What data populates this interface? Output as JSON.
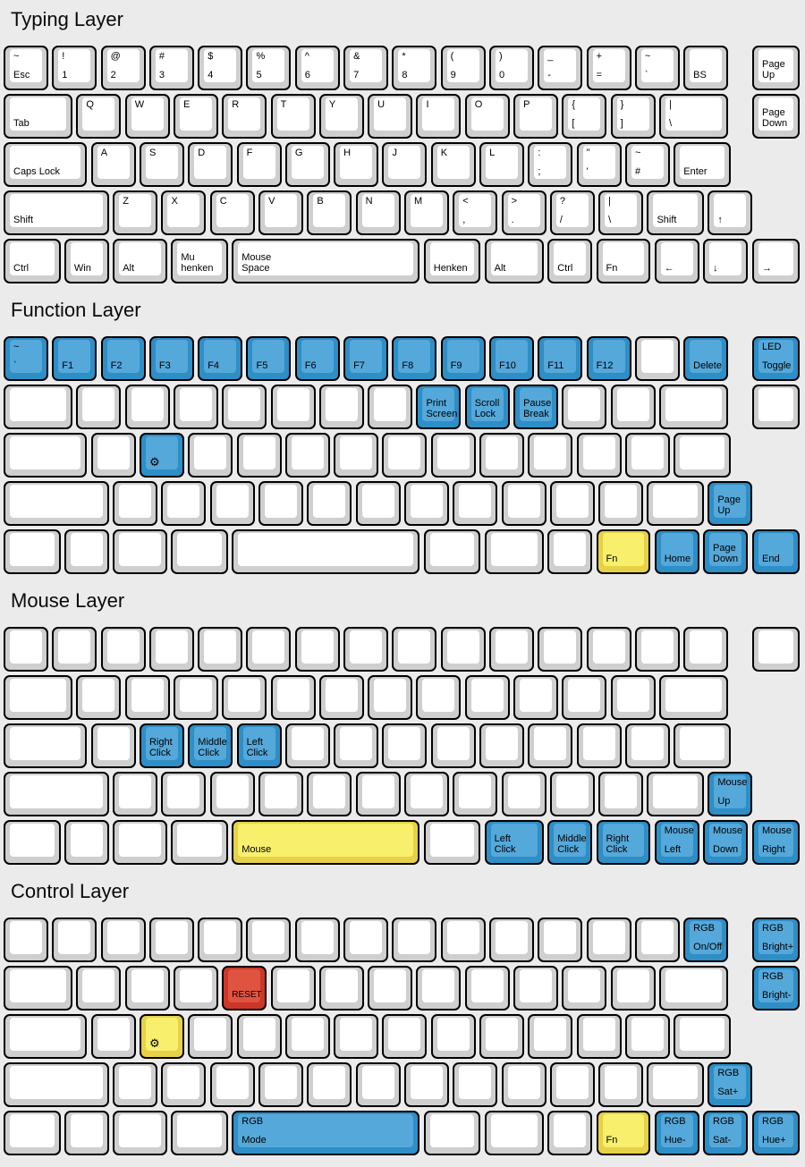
{
  "colors": {
    "background": "#ebebeb",
    "key_border": "#000000",
    "key_white_top": "#cfcfcf",
    "key_white_face": "#ffffff",
    "key_blue_top": "#2e8ec6",
    "key_blue_face": "#55a8da",
    "key_yellow_top": "#e6d148",
    "key_yellow_face": "#f8f06d",
    "key_red_top": "#cc3626",
    "key_red_face": "#e15341"
  },
  "icons": {
    "gear": "⚙",
    "arrow_up": "↑",
    "arrow_down": "↓",
    "arrow_left": "←",
    "arrow_right": "→"
  },
  "layers": [
    {
      "title": "Typing Layer",
      "rows": [
        [
          {
            "t": "~",
            "b": "Esc"
          },
          {
            "t": "!",
            "b": "1"
          },
          {
            "t": "@",
            "b": "2"
          },
          {
            "t": "#",
            "b": "3"
          },
          {
            "t": "$",
            "b": "4"
          },
          {
            "t": "%",
            "b": "5"
          },
          {
            "t": "^",
            "b": "6"
          },
          {
            "t": "&",
            "b": "7"
          },
          {
            "t": "*",
            "b": "8"
          },
          {
            "t": "(",
            "b": "9"
          },
          {
            "t": ")",
            "b": "0"
          },
          {
            "t": "_",
            "b": "-",
            "n": "minus"
          },
          {
            "t": "+",
            "b": "=",
            "n": "equals"
          },
          {
            "t": "~",
            "b": "`",
            "n": "backtick"
          },
          {
            "b": "BS"
          },
          {
            "b": "Page\nUp",
            "cl": 1
          }
        ],
        [
          {
            "b": "Tab",
            "w": 1.5
          },
          {
            "t": "Q"
          },
          {
            "t": "W"
          },
          {
            "t": "E"
          },
          {
            "t": "R"
          },
          {
            "t": "T"
          },
          {
            "t": "Y"
          },
          {
            "t": "U"
          },
          {
            "t": "I"
          },
          {
            "t": "O"
          },
          {
            "t": "P"
          },
          {
            "t": "{",
            "b": "[",
            "n": "lbracket"
          },
          {
            "t": "}",
            "b": "]",
            "n": "rbracket"
          },
          {
            "t": "|",
            "b": "\\",
            "w": 1.5,
            "n": "backslash"
          },
          {
            "b": "Page\nDown",
            "cl": 1
          }
        ],
        [
          {
            "b": "Caps Lock",
            "w": 1.8
          },
          {
            "t": "A"
          },
          {
            "t": "S"
          },
          {
            "t": "D"
          },
          {
            "t": "F"
          },
          {
            "t": "G"
          },
          {
            "t": "H"
          },
          {
            "t": "J"
          },
          {
            "t": "K"
          },
          {
            "t": "L"
          },
          {
            "t": ":",
            "b": ";",
            "n": "semicolon"
          },
          {
            "t": "\"",
            "b": "'",
            "n": "quote"
          },
          {
            "t": "~",
            "b": "#",
            "n": "hash"
          },
          {
            "b": "Enter",
            "w": 1.25
          }
        ],
        [
          {
            "b": "Shift",
            "w": 2.25
          },
          {
            "t": "Z"
          },
          {
            "t": "X"
          },
          {
            "t": "C"
          },
          {
            "t": "V"
          },
          {
            "t": "B"
          },
          {
            "t": "N"
          },
          {
            "t": "M"
          },
          {
            "t": "<",
            "b": ",",
            "n": "comma"
          },
          {
            "t": ">",
            "b": ".",
            "n": "period"
          },
          {
            "t": "?",
            "b": "/",
            "n": "slash"
          },
          {
            "t": "|",
            "b": "\\",
            "n": "backslash"
          },
          {
            "b": "Shift",
            "w": 1.25
          },
          {
            "b": "↑",
            "n": "arrow-up"
          }
        ],
        [
          {
            "b": "Ctrl",
            "w": 1.25
          },
          {
            "b": "Win"
          },
          {
            "b": "Alt",
            "w": 1.2
          },
          {
            "b": "Mu\nhenken",
            "w": 1.25
          },
          {
            "b": "Mouse\nSpace",
            "w": 3.95
          },
          {
            "b": "Henken",
            "w": 1.25
          },
          {
            "b": "Alt",
            "w": 1.3
          },
          {
            "b": "Ctrl"
          },
          {
            "b": "Fn",
            "w": 1.2
          },
          {
            "b": "←",
            "n": "arrow-left"
          },
          {
            "b": "↓",
            "n": "arrow-down"
          },
          {
            "b": "→",
            "n": "arrow-right",
            "cl": 1
          }
        ]
      ]
    },
    {
      "title": "Function Layer",
      "rows": [
        [
          {
            "t": "~",
            "b": "`",
            "c": "b",
            "n": "backtick"
          },
          {
            "b": "F1",
            "c": "b"
          },
          {
            "b": "F2",
            "c": "b"
          },
          {
            "b": "F3",
            "c": "b"
          },
          {
            "b": "F4",
            "c": "b"
          },
          {
            "b": "F5",
            "c": "b"
          },
          {
            "b": "F6",
            "c": "b"
          },
          {
            "b": "F7",
            "c": "b"
          },
          {
            "b": "F8",
            "c": "b"
          },
          {
            "b": "F9",
            "c": "b"
          },
          {
            "b": "F10",
            "c": "b"
          },
          {
            "b": "F11",
            "c": "b"
          },
          {
            "b": "F12",
            "c": "b"
          },
          {},
          {
            "b": "Delete",
            "c": "b"
          },
          {
            "t": "LED",
            "b": "Toggle",
            "c": "b",
            "n": "led-toggle",
            "cl": 1
          }
        ],
        [
          {
            "w": 1.5
          },
          {},
          {},
          {},
          {},
          {},
          {},
          {},
          {
            "b": "Print\nScreen",
            "c": "b"
          },
          {
            "b": "Scroll\nLock",
            "c": "b"
          },
          {
            "b": "Pause\nBreak",
            "c": "b"
          },
          {},
          {},
          {
            "w": 1.5
          },
          {
            "cl": 1
          }
        ],
        [
          {
            "w": 1.8
          },
          {},
          {
            "b": "⚙",
            "c": "b",
            "n": "gear",
            "fs": 13
          },
          {},
          {},
          {},
          {},
          {},
          {},
          {},
          {},
          {},
          {},
          {
            "w": 1.25
          }
        ],
        [
          {
            "w": 2.25
          },
          {},
          {},
          {},
          {},
          {},
          {},
          {},
          {},
          {},
          {},
          {},
          {
            "w": 1.25
          },
          {
            "b": "Page\nUp",
            "c": "b"
          }
        ],
        [
          {
            "w": 1.25
          },
          {},
          {
            "w": 1.2
          },
          {
            "w": 1.25
          },
          {
            "w": 3.95
          },
          {
            "w": 1.25
          },
          {
            "w": 1.3
          },
          {},
          {
            "b": "Fn",
            "c": "y",
            "w": 1.2
          },
          {
            "b": "Home",
            "c": "b"
          },
          {
            "b": "Page\nDown",
            "c": "b"
          },
          {
            "b": "End",
            "c": "b",
            "cl": 1
          }
        ]
      ]
    },
    {
      "title": "Mouse Layer",
      "rows": [
        [
          {},
          {},
          {},
          {},
          {},
          {},
          {},
          {},
          {},
          {},
          {},
          {},
          {},
          {},
          {},
          {
            "cl": 1
          }
        ],
        [
          {
            "w": 1.5
          },
          {},
          {},
          {},
          {},
          {},
          {},
          {},
          {},
          {},
          {},
          {},
          {},
          {
            "w": 1.5
          }
        ],
        [
          {
            "w": 1.8
          },
          {},
          {
            "b": "Right\nClick",
            "c": "b"
          },
          {
            "b": "Middle\nClick",
            "c": "b"
          },
          {
            "b": "Left\nClick",
            "c": "b"
          },
          {},
          {},
          {},
          {},
          {},
          {},
          {},
          {},
          {
            "w": 1.25
          }
        ],
        [
          {
            "w": 2.25
          },
          {},
          {},
          {},
          {},
          {},
          {},
          {},
          {},
          {},
          {},
          {},
          {
            "w": 1.25
          },
          {
            "t": "Mouse",
            "b": "Up",
            "c": "b",
            "n": "mouse-up"
          }
        ],
        [
          {
            "w": 1.25
          },
          {},
          {
            "w": 1.2
          },
          {
            "w": 1.25
          },
          {
            "b": "Mouse",
            "c": "y",
            "w": 3.95
          },
          {
            "w": 1.25
          },
          {
            "b": "Left\nClick",
            "c": "b",
            "w": 1.3
          },
          {
            "b": "Middle\nClick",
            "c": "b"
          },
          {
            "b": "Right\nClick",
            "c": "b",
            "w": 1.2
          },
          {
            "t": "Mouse",
            "b": "Left",
            "c": "b",
            "n": "mouse-left"
          },
          {
            "t": "Mouse",
            "b": "Down",
            "c": "b",
            "n": "mouse-down"
          },
          {
            "t": "Mouse",
            "b": "Right",
            "c": "b",
            "n": "mouse-right",
            "cl": 1
          }
        ]
      ]
    },
    {
      "title": "Control Layer",
      "rows": [
        [
          {},
          {},
          {},
          {},
          {},
          {},
          {},
          {},
          {},
          {},
          {},
          {},
          {},
          {},
          {
            "t": "RGB",
            "b": "On/Off",
            "c": "b",
            "n": "rgb-on-off"
          },
          {
            "t": "RGB",
            "b": "Bright+",
            "c": "b",
            "n": "rgb-bright-plus",
            "cl": 1
          }
        ],
        [
          {
            "w": 1.5
          },
          {},
          {},
          {},
          {
            "b": "RESET",
            "c": "r",
            "n": "reset",
            "fs": 10
          },
          {},
          {},
          {},
          {},
          {},
          {},
          {},
          {},
          {
            "w": 1.5
          },
          {
            "t": "RGB",
            "b": "Bright-",
            "c": "b",
            "n": "rgb-bright-minus",
            "cl": 1
          }
        ],
        [
          {
            "w": 1.8
          },
          {},
          {
            "b": "⚙",
            "c": "y",
            "n": "gear",
            "fs": 13
          },
          {},
          {},
          {},
          {},
          {},
          {},
          {},
          {},
          {},
          {},
          {
            "w": 1.25
          }
        ],
        [
          {
            "w": 2.25
          },
          {},
          {},
          {},
          {},
          {},
          {},
          {},
          {},
          {},
          {},
          {},
          {
            "w": 1.25
          },
          {
            "t": "RGB",
            "b": "Sat+",
            "c": "b",
            "n": "rgb-sat-plus"
          }
        ],
        [
          {
            "w": 1.25
          },
          {},
          {
            "w": 1.2
          },
          {
            "w": 1.25
          },
          {
            "t": "RGB",
            "b": "Mode",
            "c": "b",
            "n": "rgb-mode",
            "w": 3.95
          },
          {
            "w": 1.25
          },
          {
            "w": 1.3
          },
          {},
          {
            "b": "Fn",
            "c": "y",
            "w": 1.2
          },
          {
            "t": "RGB",
            "b": "Hue-",
            "c": "b",
            "n": "rgb-hue-minus"
          },
          {
            "t": "RGB",
            "b": "Sat-",
            "c": "b",
            "n": "rgb-sat-minus"
          },
          {
            "t": "RGB",
            "b": "Hue+",
            "c": "b",
            "n": "rgb-hue-plus",
            "cl": 1
          }
        ]
      ]
    }
  ]
}
